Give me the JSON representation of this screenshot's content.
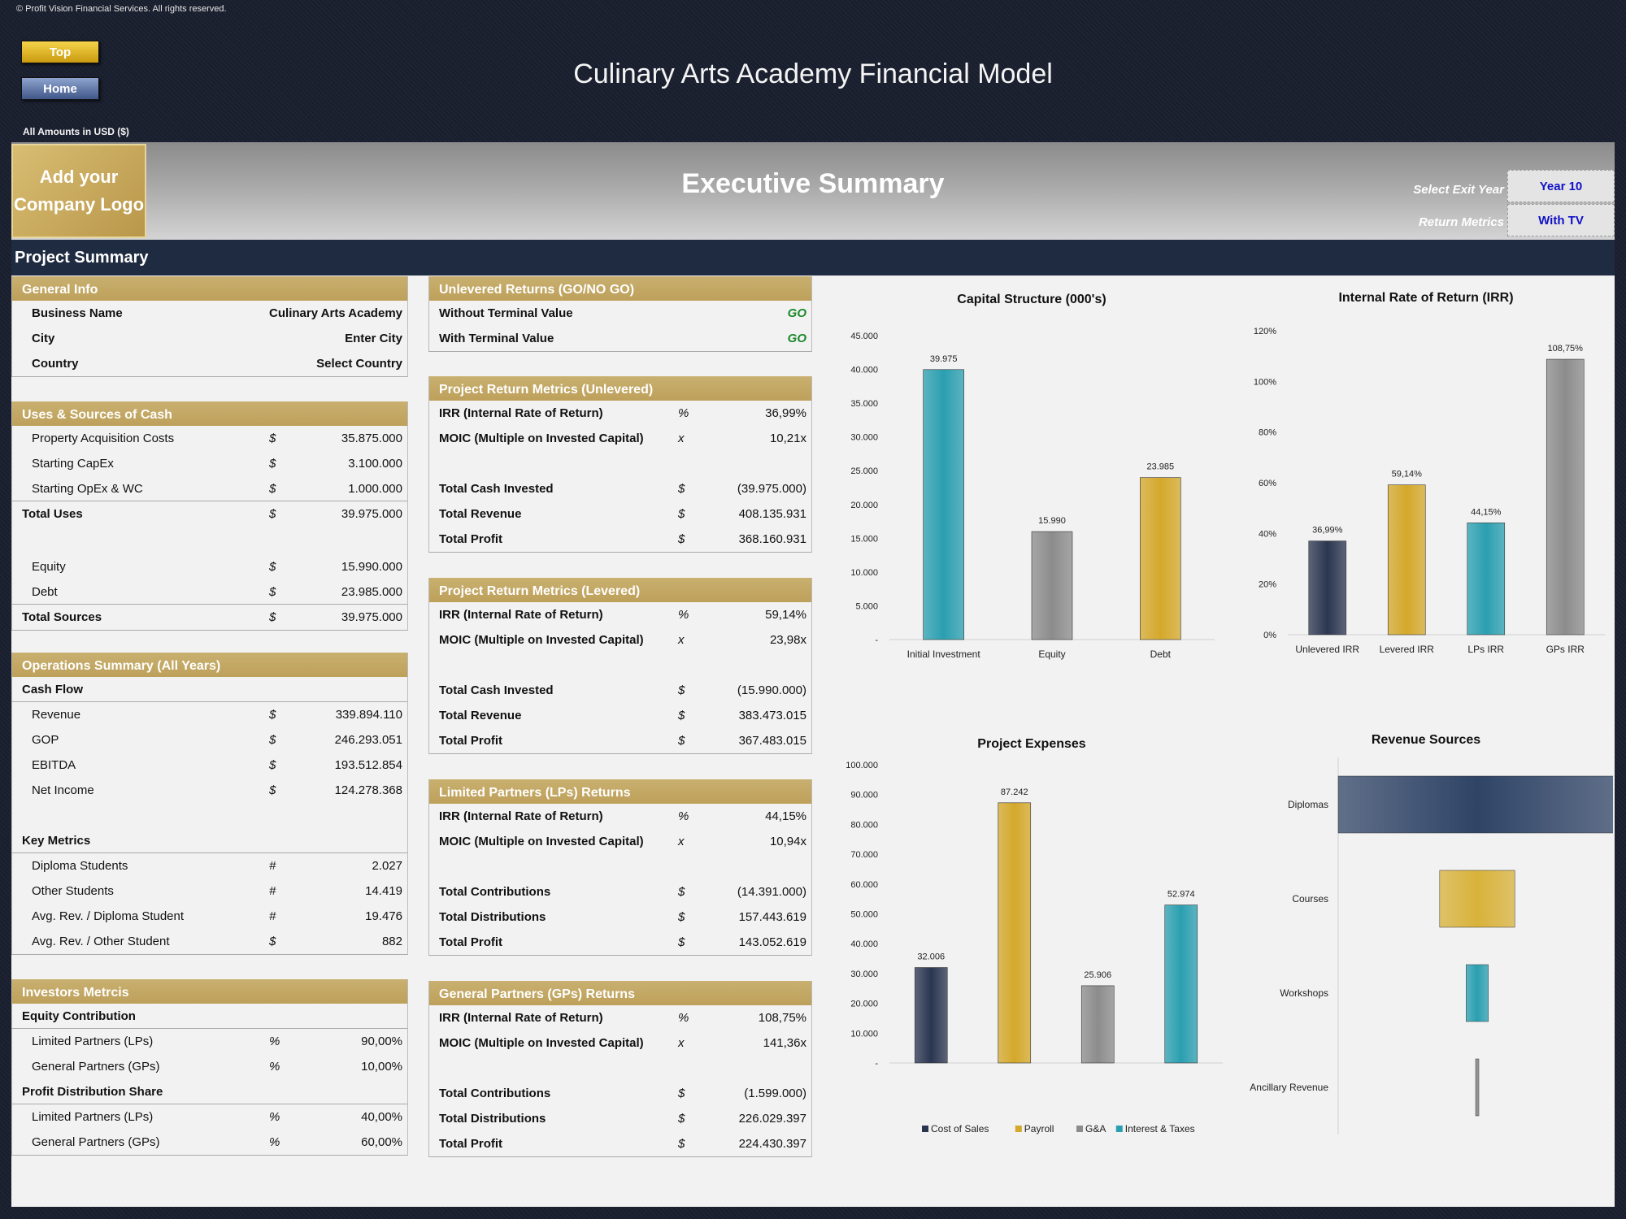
{
  "header": {
    "copyright": "© Profit Vision Financial Services. All rights reserved.",
    "top_button": "Top",
    "home_button": "Home",
    "title": "Culinary Arts Academy Financial Model",
    "amounts_note": "All Amounts in  USD ($)"
  },
  "banner": {
    "logo_line1": "Add your",
    "logo_line2": "Company Logo",
    "title": "Executive Summary",
    "exit_year_label": "Select Exit Year",
    "exit_year_value": "Year 10",
    "return_metrics_label": "Return Metrics",
    "return_metrics_value": "With TV",
    "project_summary": "Project Summary"
  },
  "general_info": {
    "title": "General Info",
    "rows": [
      {
        "label": "Business Name",
        "value": "Culinary Arts Academy"
      },
      {
        "label": "City",
        "value": "Enter City"
      },
      {
        "label": "Country",
        "value": "Select Country"
      }
    ]
  },
  "uses_sources": {
    "title": "Uses & Sources of Cash",
    "uses": [
      {
        "label": "Property Acquisition Costs",
        "unit": "$",
        "value": "35.875.000"
      },
      {
        "label": "Starting CapEx",
        "unit": "$",
        "value": "3.100.000"
      },
      {
        "label": "Starting OpEx & WC",
        "unit": "$",
        "value": "1.000.000"
      }
    ],
    "total_uses": {
      "label": "Total Uses",
      "unit": "$",
      "value": "39.975.000"
    },
    "sources": [
      {
        "label": "Equity",
        "unit": "$",
        "value": "15.990.000"
      },
      {
        "label": "Debt",
        "unit": "$",
        "value": "23.985.000"
      }
    ],
    "total_sources": {
      "label": "Total Sources",
      "unit": "$",
      "value": "39.975.000"
    }
  },
  "operations": {
    "title": "Operations Summary (All Years)",
    "cash_flow_label": "Cash Flow",
    "cash_flow": [
      {
        "label": "Revenue",
        "unit": "$",
        "value": "339.894.110"
      },
      {
        "label": "GOP",
        "unit": "$",
        "value": "246.293.051"
      },
      {
        "label": "EBITDA",
        "unit": "$",
        "value": "193.512.854"
      },
      {
        "label": "Net Income",
        "unit": "$",
        "value": "124.278.368"
      }
    ],
    "key_metrics_label": "Key Metrics",
    "key_metrics": [
      {
        "label": "Diploma Students",
        "unit": "#",
        "value": "2.027"
      },
      {
        "label": "Other Students",
        "unit": "#",
        "value": "14.419"
      },
      {
        "label": "Avg. Rev. / Diploma Student",
        "unit": "#",
        "value": "19.476"
      },
      {
        "label": "Avg. Rev. / Other Student",
        "unit": "$",
        "value": "882"
      }
    ]
  },
  "investors": {
    "title": "Investors Metrcis",
    "equity_label": "Equity Contribution",
    "equity": [
      {
        "label": "Limited Partners (LPs)",
        "unit": "%",
        "value": "90,00%"
      },
      {
        "label": "General Partners (GPs)",
        "unit": "%",
        "value": "10,00%"
      }
    ],
    "profit_label": "Profit Distribution Share",
    "profit": [
      {
        "label": "Limited Partners (LPs)",
        "unit": "%",
        "value": "40,00%"
      },
      {
        "label": "General Partners (GPs)",
        "unit": "%",
        "value": "60,00%"
      }
    ]
  },
  "unlevered_returns": {
    "title": "Unlevered Returns (GO/NO GO)",
    "rows": [
      {
        "label": "Without Terminal Value",
        "value": "GO"
      },
      {
        "label": "With Terminal Value",
        "value": "GO"
      }
    ]
  },
  "prm_unlevered": {
    "title": "Project Return Metrics (Unlevered)",
    "top": [
      {
        "label": "IRR (Internal Rate of Return)",
        "unit": "%",
        "value": "36,99%"
      },
      {
        "label": "MOIC (Multiple on Invested Capital)",
        "unit": "x",
        "value": "10,21x"
      }
    ],
    "bottom": [
      {
        "label": "Total Cash Invested",
        "unit": "$",
        "value": "(39.975.000)"
      },
      {
        "label": "Total Revenue",
        "unit": "$",
        "value": "408.135.931"
      },
      {
        "label": "Total Profit",
        "unit": "$",
        "value": "368.160.931"
      }
    ]
  },
  "prm_levered": {
    "title": "Project Return Metrics (Levered)",
    "top": [
      {
        "label": "IRR (Internal Rate of Return)",
        "unit": "%",
        "value": "59,14%"
      },
      {
        "label": "MOIC (Multiple on Invested Capital)",
        "unit": "x",
        "value": "23,98x"
      }
    ],
    "bottom": [
      {
        "label": "Total Cash Invested",
        "unit": "$",
        "value": "(15.990.000)"
      },
      {
        "label": "Total Revenue",
        "unit": "$",
        "value": "383.473.015"
      },
      {
        "label": "Total Profit",
        "unit": "$",
        "value": "367.483.015"
      }
    ]
  },
  "lp_returns": {
    "title": "Limited Partners (LPs) Returns",
    "top": [
      {
        "label": "IRR (Internal Rate of Return)",
        "unit": "%",
        "value": "44,15%"
      },
      {
        "label": "MOIC (Multiple on Invested Capital)",
        "unit": "x",
        "value": "10,94x"
      }
    ],
    "bottom": [
      {
        "label": "Total Contributions",
        "unit": "$",
        "value": "(14.391.000)"
      },
      {
        "label": "Total Distributions",
        "unit": "$",
        "value": "157.443.619"
      },
      {
        "label": "Total Profit",
        "unit": "$",
        "value": "143.052.619"
      }
    ]
  },
  "gp_returns": {
    "title": "General Partners (GPs) Returns",
    "top": [
      {
        "label": "IRR (Internal Rate of Return)",
        "unit": "%",
        "value": "108,75%"
      },
      {
        "label": "MOIC (Multiple on Invested Capital)",
        "unit": "x",
        "value": "141,36x"
      }
    ],
    "bottom": [
      {
        "label": "Total Contributions",
        "unit": "$",
        "value": "(1.599.000)"
      },
      {
        "label": "Total Distributions",
        "unit": "$",
        "value": "226.029.397"
      },
      {
        "label": "Total Profit",
        "unit": "$",
        "value": "224.430.397"
      }
    ]
  },
  "chart_data": [
    {
      "type": "bar",
      "title": "Capital Structure (000's)",
      "categories": [
        "Initial Investment",
        "Equity",
        "Debt"
      ],
      "values": [
        39975,
        15990,
        23985
      ],
      "data_labels": [
        "39.975",
        "15.990",
        "23.985"
      ],
      "ylim": [
        0,
        45000
      ],
      "yticks": [
        "-",
        "5.000",
        "10.000",
        "15.000",
        "20.000",
        "25.000",
        "30.000",
        "35.000",
        "40.000",
        "45.000"
      ],
      "colors": [
        "#2a9fb0",
        "#8c8c8c",
        "#d4a82a"
      ]
    },
    {
      "type": "bar",
      "title": "Internal Rate of Return (IRR)",
      "categories": [
        "Unlevered IRR",
        "Levered IRR",
        "LPs IRR",
        "GPs IRR"
      ],
      "values": [
        36.99,
        59.14,
        44.15,
        108.75
      ],
      "data_labels": [
        "36,99%",
        "59,14%",
        "44,15%",
        "108,75%"
      ],
      "ylim": [
        0,
        120
      ],
      "yticks": [
        "0%",
        "20%",
        "40%",
        "60%",
        "80%",
        "100%",
        "120%"
      ],
      "colors": [
        "#2a3550",
        "#d4a82a",
        "#2a9fb0",
        "#8c8c8c"
      ]
    },
    {
      "type": "bar",
      "title": "Project Expenses",
      "categories": [
        "Cost of Sales",
        "Payroll",
        "G&A",
        "Interest & Taxes"
      ],
      "values": [
        32006,
        87242,
        25906,
        52974
      ],
      "data_labels": [
        "32.006",
        "87.242",
        "25.906",
        "52.974"
      ],
      "ylim": [
        0,
        100000
      ],
      "yticks": [
        "-",
        "10.000",
        "20.000",
        "30.000",
        "40.000",
        "50.000",
        "60.000",
        "70.000",
        "80.000",
        "90.000",
        "100.000"
      ],
      "legend": [
        "Cost of Sales",
        "Payroll",
        "G&A",
        "Interest & Taxes"
      ],
      "colors": [
        "#2a3550",
        "#d4a82a",
        "#8c8c8c",
        "#2a9fb0"
      ]
    },
    {
      "type": "bar",
      "title": "Revenue Sources",
      "orientation": "horizontal",
      "categories": [
        "Diplomas",
        "Courses",
        "Workshops",
        "Ancillary Revenue"
      ],
      "values": [
        100,
        27,
        8,
        1
      ],
      "colors": [
        "#2f4466",
        "#d8b23a",
        "#2a9fb0",
        "#8c8c8c"
      ]
    }
  ]
}
